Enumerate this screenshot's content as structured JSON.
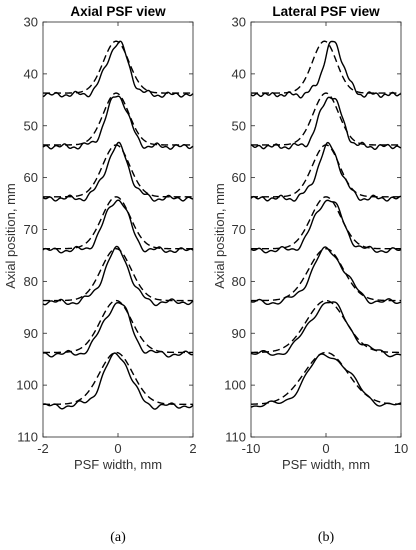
{
  "chart_data": [
    {
      "type": "line",
      "panel": "a",
      "title": "Axial PSF view",
      "xlabel": "PSF width, mm",
      "ylabel": "Axial position, mm",
      "xlim": [
        -2,
        2
      ],
      "ylim": [
        110,
        30
      ],
      "y_reversed": true,
      "xticks": [
        -2,
        0,
        2
      ],
      "yticks": [
        30,
        40,
        50,
        60,
        70,
        80,
        90,
        100,
        110
      ],
      "grid": false,
      "peaks": [
        {
          "baseline": 44,
          "solid": {
            "center": 0.0,
            "width": 0.3,
            "skew": 0.9
          },
          "dashed": {
            "center": -0.05,
            "width": 0.34
          }
        },
        {
          "baseline": 54,
          "solid": {
            "center": 0.0,
            "width": 0.3,
            "skew": 0.9
          },
          "dashed": {
            "center": -0.05,
            "width": 0.34
          }
        },
        {
          "baseline": 64,
          "solid": {
            "center": 0.0,
            "width": 0.32,
            "skew": 0.9
          },
          "dashed": {
            "center": -0.05,
            "width": 0.36
          }
        },
        {
          "baseline": 74,
          "solid": {
            "center": 0.0,
            "width": 0.34,
            "skew": 0.85
          },
          "dashed": {
            "center": -0.05,
            "width": 0.38
          }
        },
        {
          "baseline": 84,
          "solid": {
            "center": 0.0,
            "width": 0.36,
            "skew": 0.85
          },
          "dashed": {
            "center": -0.05,
            "width": 0.4
          }
        },
        {
          "baseline": 94,
          "solid": {
            "center": 0.0,
            "width": 0.38,
            "skew": 0.85
          },
          "dashed": {
            "center": -0.05,
            "width": 0.42
          }
        },
        {
          "baseline": 104,
          "solid": {
            "center": 0.0,
            "width": 0.38,
            "skew": 0.85
          },
          "dashed": {
            "center": -0.05,
            "width": 0.44
          }
        }
      ],
      "peak_height": 10,
      "caption": "(a)"
    },
    {
      "type": "line",
      "panel": "b",
      "title": "Lateral PSF view",
      "xlabel": "PSF width, mm",
      "ylabel": "Axial position, mm",
      "xlim": [
        -10,
        10
      ],
      "ylim": [
        110,
        30
      ],
      "y_reversed": true,
      "xticks": [
        -10,
        0,
        10
      ],
      "yticks": [
        30,
        40,
        50,
        60,
        70,
        80,
        90,
        100,
        110
      ],
      "grid": false,
      "peaks": [
        {
          "baseline": 44,
          "solid": {
            "center": 1.0,
            "width": 1.3,
            "skew": 1.0
          },
          "dashed": {
            "center": -0.2,
            "width": 1.6
          }
        },
        {
          "baseline": 54,
          "solid": {
            "center": 0.6,
            "width": 1.4,
            "skew": 1.0
          },
          "dashed": {
            "center": 0.0,
            "width": 1.7
          }
        },
        {
          "baseline": 64,
          "solid": {
            "center": 0.4,
            "width": 1.5,
            "skew": 1.0
          },
          "dashed": {
            "center": 0.0,
            "width": 1.8
          }
        },
        {
          "baseline": 74,
          "solid": {
            "center": 0.3,
            "width": 1.8,
            "skew": 1.0
          },
          "dashed": {
            "center": 0.0,
            "width": 2.0
          }
        },
        {
          "baseline": 84,
          "solid": {
            "center": 0.2,
            "width": 2.1,
            "skew": 1.1
          },
          "dashed": {
            "center": 0.0,
            "width": 2.3
          }
        },
        {
          "baseline": 94,
          "solid": {
            "center": 0.2,
            "width": 2.4,
            "skew": 1.1
          },
          "dashed": {
            "center": 0.0,
            "width": 2.6
          }
        },
        {
          "baseline": 104,
          "solid": {
            "center": 0.2,
            "width": 2.7,
            "skew": 1.1
          },
          "dashed": {
            "center": 0.0,
            "width": 2.9
          }
        }
      ],
      "peak_height": 10,
      "caption": "(b)"
    }
  ]
}
